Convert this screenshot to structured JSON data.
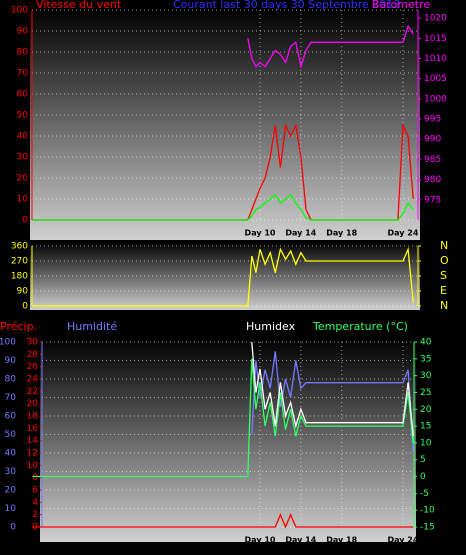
{
  "chart_data": [
    {
      "type": "line",
      "title": "Courant last 30 days 30 Septembre 2013",
      "x": [
        -12.3,
        8.8,
        9.2,
        9.6,
        10,
        10.5,
        11,
        11.5,
        12,
        12.5,
        13,
        13.5,
        14,
        14.5,
        15,
        16,
        18,
        20,
        22,
        23.5,
        24,
        24.5,
        25
      ],
      "xlim": [
        -12.33,
        25.47
      ],
      "xticks": [
        {
          "value": 10,
          "label": "Day 10"
        },
        {
          "value": 14,
          "label": "Day 14"
        },
        {
          "value": 18,
          "label": "Day 18"
        },
        {
          "value": 24,
          "label": "Day 24"
        }
      ],
      "ylim": [
        0,
        100
      ],
      "yticks": [
        0,
        10,
        20,
        30,
        40,
        50,
        60,
        70,
        80,
        90,
        100
      ],
      "y2lim": [
        970,
        1022
      ],
      "y2ticks": [
        975,
        980,
        985,
        990,
        995,
        1000,
        1005,
        1010,
        1015,
        1020
      ],
      "grid": true,
      "series": [
        {
          "name": "Vitesse du vent",
          "color": "#ff0000",
          "values": [
            0,
            0,
            5,
            10,
            15,
            20,
            30,
            45,
            25,
            45,
            40,
            45,
            30,
            5,
            0,
            0,
            0,
            0,
            0,
            0,
            45,
            40,
            10
          ]
        },
        {
          "color": "#00ff00",
          "values": [
            0,
            0,
            2,
            5,
            6,
            8,
            10,
            12,
            8,
            10,
            12,
            8,
            5,
            1,
            0,
            0,
            0,
            0,
            0,
            0,
            3,
            8,
            5
          ]
        },
        {
          "name": "Barometre",
          "color": "#ff00ff",
          "axis": "y2",
          "values": [
            null,
            1015,
            1010,
            1008,
            1009,
            1008,
            1010,
            1012,
            1011,
            1009,
            1013,
            1014,
            1008,
            1012,
            1014,
            1014,
            1014,
            1014,
            1014,
            1014,
            1014,
            1018,
            1016
          ]
        }
      ]
    },
    {
      "type": "line",
      "x": [
        -12.3,
        8.8,
        9.2,
        9.6,
        10,
        10.5,
        11,
        11.5,
        12,
        12.5,
        13,
        13.5,
        14,
        14.5,
        15,
        16,
        18,
        20,
        22,
        23.5,
        24,
        24.5,
        25
      ],
      "xlim": [
        -12.33,
        25.47
      ],
      "ylim": [
        0,
        360
      ],
      "yticks": [
        0,
        90,
        180,
        270,
        360
      ],
      "y2lim": [
        0,
        360
      ],
      "y2ticks": [
        {
          "value": 360,
          "label": "N"
        },
        {
          "value": 270,
          "label": "O"
        },
        {
          "value": 180,
          "label": "S"
        },
        {
          "value": 90,
          "label": "E"
        },
        {
          "value": 0,
          "label": "N"
        }
      ],
      "grid": true,
      "series": [
        {
          "color": "#ffff00",
          "values": [
            0,
            0,
            300,
            200,
            340,
            250,
            320,
            200,
            340,
            280,
            330,
            250,
            320,
            270,
            270,
            270,
            270,
            270,
            270,
            270,
            270,
            340,
            20
          ]
        }
      ]
    },
    {
      "type": "line",
      "x": [
        -12.3,
        8.8,
        9.2,
        9.6,
        10,
        10.5,
        11,
        11.5,
        12,
        12.5,
        13,
        13.5,
        14,
        14.5,
        15,
        16,
        18,
        20,
        22,
        23.5,
        24,
        24.5,
        25
      ],
      "xlim": [
        -11.35,
        25.08
      ],
      "xticks": [
        {
          "value": 10,
          "label": "Day 10"
        },
        {
          "value": 14,
          "label": "Day 14"
        },
        {
          "value": 18,
          "label": "Day 18"
        },
        {
          "value": 24,
          "label": "Day 24"
        }
      ],
      "ylim": [
        0,
        100
      ],
      "yticks": [
        0,
        10,
        20,
        30,
        40,
        50,
        60,
        70,
        80,
        90,
        100
      ],
      "y3lim": [
        0,
        30
      ],
      "y3ticks": [
        0,
        2,
        4,
        6,
        8,
        10,
        12,
        14,
        16,
        18,
        20,
        22,
        24,
        26,
        28,
        30
      ],
      "y2lim": [
        -15,
        40
      ],
      "y2ticks": [
        -15,
        -10,
        -5,
        0,
        5,
        10,
        15,
        20,
        25,
        30,
        35,
        40
      ],
      "grid": true,
      "series": [
        {
          "name": "Précip.",
          "color": "#ff0000",
          "axis": "y3",
          "values": [
            0,
            0,
            0,
            0,
            0,
            0,
            0,
            0,
            2,
            0,
            2,
            0,
            0,
            0,
            0,
            0,
            0,
            0,
            0,
            0,
            0,
            0,
            0
          ]
        },
        {
          "name": "Humidité",
          "color": "#7878ff",
          "values": [
            null,
            null,
            50,
            90,
            70,
            85,
            75,
            95,
            65,
            80,
            70,
            90,
            75,
            78,
            78,
            78,
            78,
            78,
            78,
            78,
            78,
            85,
            40
          ]
        },
        {
          "name": "Temperature (°C)",
          "color": "#33ff66",
          "axis": "y2",
          "values": [
            0,
            0,
            35,
            20,
            28,
            15,
            22,
            12,
            25,
            14,
            20,
            12,
            18,
            15,
            15,
            15,
            15,
            15,
            15,
            15,
            15,
            25,
            10
          ]
        },
        {
          "name": "Humidex",
          "color": "#ffffff",
          "axis": "y2",
          "values": [
            null,
            null,
            40,
            25,
            32,
            20,
            25,
            15,
            28,
            18,
            22,
            15,
            20,
            16,
            16,
            16,
            16,
            16,
            16,
            16,
            16,
            28,
            12
          ]
        }
      ]
    }
  ]
}
